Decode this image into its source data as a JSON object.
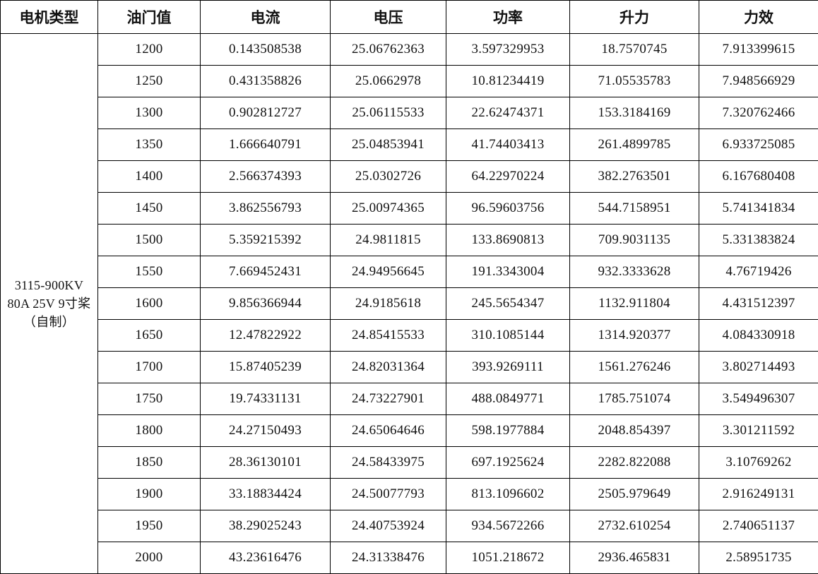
{
  "table": {
    "headers": [
      "电机类型",
      "油门值",
      "电流",
      "电压",
      "功率",
      "升力",
      "力效"
    ],
    "motor_type": "3115-900KV 80A 25V 9寸桨（自制）",
    "rows": [
      [
        "1200",
        "0.143508538",
        "25.06762363",
        "3.597329953",
        "18.7570745",
        "7.913399615"
      ],
      [
        "1250",
        "0.431358826",
        "25.0662978",
        "10.81234419",
        "71.05535783",
        "7.948566929"
      ],
      [
        "1300",
        "0.902812727",
        "25.06115533",
        "22.62474371",
        "153.3184169",
        "7.320762466"
      ],
      [
        "1350",
        "1.666640791",
        "25.04853941",
        "41.74403413",
        "261.4899785",
        "6.933725085"
      ],
      [
        "1400",
        "2.566374393",
        "25.0302726",
        "64.22970224",
        "382.2763501",
        "6.167680408"
      ],
      [
        "1450",
        "3.862556793",
        "25.00974365",
        "96.59603756",
        "544.7158951",
        "5.741341834"
      ],
      [
        "1500",
        "5.359215392",
        "24.9811815",
        "133.8690813",
        "709.9031135",
        "5.331383824"
      ],
      [
        "1550",
        "7.669452431",
        "24.94956645",
        "191.3343004",
        "932.3333628",
        "4.76719426"
      ],
      [
        "1600",
        "9.856366944",
        "24.9185618",
        "245.5654347",
        "1132.911804",
        "4.431512397"
      ],
      [
        "1650",
        "12.47822922",
        "24.85415533",
        "310.1085144",
        "1314.920377",
        "4.084330918"
      ],
      [
        "1700",
        "15.87405239",
        "24.82031364",
        "393.9269111",
        "1561.276246",
        "3.802714493"
      ],
      [
        "1750",
        "19.74331131",
        "24.73227901",
        "488.0849771",
        "1785.751074",
        "3.549496307"
      ],
      [
        "1800",
        "24.27150493",
        "24.65064646",
        "598.1977884",
        "2048.854397",
        "3.301211592"
      ],
      [
        "1850",
        "28.36130101",
        "24.58433975",
        "697.1925624",
        "2282.822088",
        "3.10769262"
      ],
      [
        "1900",
        "33.18834424",
        "24.50077793",
        "813.1096602",
        "2505.979649",
        "2.916249131"
      ],
      [
        "1950",
        "38.29025243",
        "24.40753924",
        "934.5672266",
        "2732.610254",
        "2.740651137"
      ],
      [
        "2000",
        "43.23616476",
        "24.31338476",
        "1051.218672",
        "2936.465831",
        "2.58951735"
      ]
    ]
  }
}
